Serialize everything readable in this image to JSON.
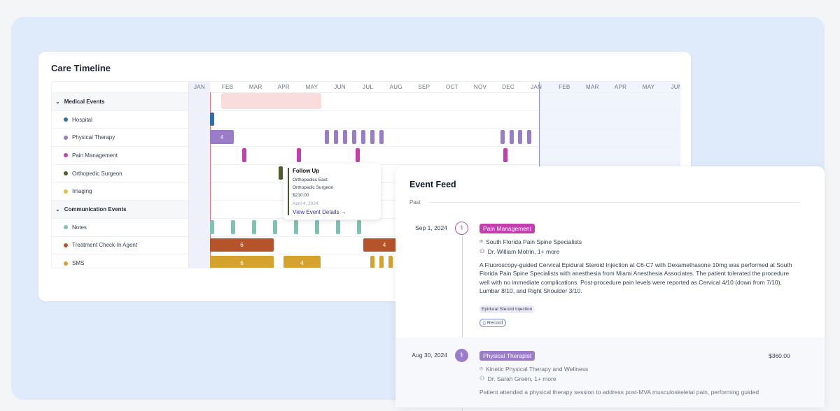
{
  "timeline": {
    "title": "Care Timeline",
    "months": [
      "JAN",
      "FEB",
      "MAR",
      "APR",
      "MAY",
      "JUN",
      "JUL",
      "AUG",
      "SEP",
      "OCT",
      "NOV",
      "DEC",
      "JAN",
      "FEB",
      "MAR",
      "APR",
      "MAY",
      "JUN"
    ],
    "rows": [
      {
        "label": "Medical Events",
        "group": true
      },
      {
        "label": "Hospital",
        "color": "#2f6cb0"
      },
      {
        "label": "Physical Therapy",
        "color": "#9a7cc9"
      },
      {
        "label": "Pain Management",
        "color": "#c43fae"
      },
      {
        "label": "Orthopedic Surgeon",
        "color": "#4f5f2c"
      },
      {
        "label": "Imaging",
        "color": "#e2c04b"
      },
      {
        "label": "Communication Events",
        "group": true
      },
      {
        "label": "Notes",
        "color": "#7fc2b3"
      },
      {
        "label": "Treatment Check-In Agent",
        "color": "#b5532a"
      },
      {
        "label": "SMS",
        "color": "#d6a22e"
      }
    ],
    "bar_labels": {
      "pt_group": "4",
      "treatment_1": "6",
      "treatment_2": "4",
      "sms_1": "6",
      "sms_2": "4"
    },
    "tooltip": {
      "title": "Follow Up",
      "line1": "Orthopedics East",
      "line2": "Orthopedic Surgeon",
      "amount": "$210.00",
      "date": "April 4, 2024",
      "link": "View Event Details"
    }
  },
  "feed": {
    "title": "Event Feed",
    "section": "Past",
    "events": [
      {
        "date": "Sep 1, 2024",
        "category": "Pain Management",
        "color": "#c43fae",
        "location": "South Florida Pain Spine Specialists",
        "provider": "Dr. William Motrin, 1+ more",
        "description": "A Fluoroscopy-guided Cervical Epidural Steroid Injection at C6-C7 with Dexamethasone 10mg was performed at South Florida Pain Spine Specialists with anesthesia from Miami Anesthesia Associates. The patient tolerated the procedure well with no immediate complications. Post-procedure pain levels were reported as Cervical 4/10 (down from 7/10), Lumbar 8/10, and Right Shoulder 3/10.",
        "tag": "Epidural Steroid Injection",
        "record": "Record"
      },
      {
        "date": "Aug 30, 2024",
        "category": "Physical Therapist",
        "color": "#9a7cc9",
        "amount": "$360.00",
        "location": "Kinetic Physical Therapy and Wellness",
        "provider": "Dr. Sarah Green, 1+ more",
        "description": "Patient attended a physical therapy session to address post-MVA musculoskeletal pain, performing guided"
      }
    ]
  }
}
